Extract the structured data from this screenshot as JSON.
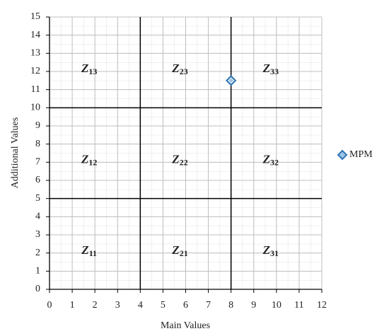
{
  "chart_data": {
    "type": "scatter",
    "x_label": "Main Values",
    "y_label": "Additional Values",
    "xlim": [
      0,
      12
    ],
    "ylim": [
      0,
      15
    ],
    "xticks": [
      0,
      1,
      2,
      3,
      4,
      5,
      6,
      7,
      8,
      9,
      10,
      11,
      12
    ],
    "yticks": [
      0,
      1,
      2,
      3,
      4,
      5,
      6,
      7,
      8,
      9,
      10,
      11,
      12,
      13,
      14,
      15
    ],
    "grid": true,
    "minor_step": 0.5,
    "dividers": {
      "x": [
        4,
        8
      ],
      "y": [
        5,
        10
      ]
    },
    "zones": [
      {
        "label": "Z",
        "sub": "11"
      },
      {
        "label": "Z",
        "sub": "12"
      },
      {
        "label": "Z",
        "sub": "13"
      },
      {
        "label": "Z",
        "sub": "21"
      },
      {
        "label": "Z",
        "sub": "22"
      },
      {
        "label": "Z",
        "sub": "23"
      },
      {
        "label": "Z",
        "sub": "31"
      },
      {
        "label": "Z",
        "sub": "32"
      },
      {
        "label": "Z",
        "sub": "33"
      }
    ],
    "series": [
      {
        "name": "MPM",
        "color": "#2e75b6",
        "x": [
          8
        ],
        "values": [
          11.5
        ]
      }
    ],
    "legend": "right"
  }
}
